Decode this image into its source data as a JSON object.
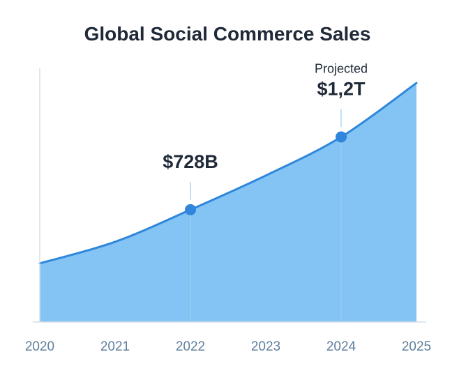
{
  "chart_data": {
    "type": "area",
    "title": "Global Social Commerce Sales",
    "xlabel": "",
    "ylabel": "",
    "categories": [
      "2020",
      "2021",
      "2022",
      "2023",
      "2024",
      "2025"
    ],
    "series": [
      {
        "name": "Global Social Commerce Sales",
        "x": [
          2020,
          2021,
          2022,
          2023,
          2024,
          2025
        ],
        "values": [
          0.38,
          0.52,
          0.728,
          0.95,
          1.2,
          1.55
        ]
      }
    ],
    "ylim": [
      0,
      1.6
    ],
    "annotations": [
      {
        "x": 2022,
        "value": 0.728,
        "label": "$728B",
        "sublabel": ""
      },
      {
        "x": 2024,
        "value": 1.2,
        "label": "$1,2T",
        "sublabel": "Projected"
      }
    ],
    "grid": false,
    "colors": {
      "fill": "#7cc1f3",
      "line": "#2f86da",
      "point": "#2f86da",
      "axis": "#d8dee6",
      "guide": "#9ecbef",
      "title": "#1f2937",
      "tick": "#5f7f9d"
    }
  }
}
